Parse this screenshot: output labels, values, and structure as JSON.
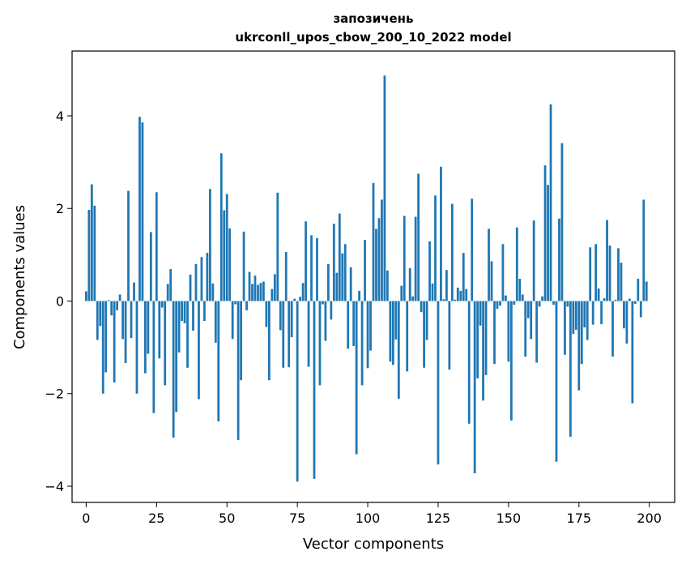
{
  "chart_data": {
    "type": "bar",
    "title": "запозичень",
    "subtitle": "ukrconll_upos_cbow_200_10_2022 model",
    "xlabel": "Vector components",
    "ylabel": "Components values",
    "xlim": [
      -5,
      209
    ],
    "ylim": [
      -4.35,
      5.4
    ],
    "xticks": [
      0,
      25,
      50,
      75,
      100,
      125,
      150,
      175,
      200
    ],
    "yticks": [
      -4,
      -2,
      0,
      2,
      4
    ],
    "xtick_labels": [
      "0",
      "25",
      "50",
      "75",
      "100",
      "125",
      "150",
      "175",
      "200"
    ],
    "ytick_labels": [
      "−4",
      "−2",
      "0",
      "2",
      "4"
    ],
    "grid": false,
    "bar_color": "#1f77b4",
    "values": [
      0.21,
      1.97,
      2.52,
      2.06,
      -0.84,
      -0.54,
      -2.0,
      -1.54,
      0.02,
      -0.31,
      -1.76,
      -0.2,
      0.14,
      -0.82,
      -1.34,
      2.38,
      -0.8,
      0.4,
      -2.0,
      3.98,
      3.86,
      -1.56,
      -1.14,
      1.49,
      -2.42,
      2.35,
      -1.24,
      -0.14,
      -1.82,
      0.37,
      0.69,
      -2.95,
      -2.4,
      -1.11,
      -0.43,
      -0.48,
      -1.44,
      0.57,
      -0.64,
      0.8,
      -2.12,
      0.95,
      -0.43,
      1.04,
      2.42,
      0.38,
      -0.9,
      -2.6,
      3.19,
      1.96,
      2.31,
      1.57,
      -0.82,
      -0.07,
      -3.0,
      -1.71,
      1.5,
      -0.2,
      0.63,
      0.37,
      0.55,
      0.35,
      0.39,
      0.42,
      -0.56,
      -1.71,
      0.26,
      0.58,
      2.34,
      -0.63,
      -1.44,
      1.06,
      -1.43,
      -0.78,
      0.05,
      -3.9,
      0.09,
      0.39,
      1.72,
      -1.42,
      1.42,
      -3.84,
      1.36,
      -1.82,
      -0.07,
      -0.86,
      0.8,
      -0.4,
      1.67,
      0.61,
      1.89,
      1.03,
      1.23,
      -1.03,
      0.73,
      -0.97,
      -3.31,
      0.22,
      -1.82,
      1.32,
      -1.45,
      -1.07,
      2.55,
      1.56,
      1.79,
      2.19,
      4.87,
      0.66,
      -1.31,
      -1.38,
      -0.83,
      -2.11,
      0.33,
      1.84,
      -1.52,
      0.71,
      0.1,
      1.82,
      2.75,
      -0.24,
      -1.44,
      -0.84,
      1.29,
      0.38,
      2.28,
      -3.53,
      2.9,
      0.04,
      0.67,
      -1.48,
      2.1,
      0.03,
      0.29,
      0.22,
      1.04,
      0.26,
      -2.65,
      2.21,
      -3.72,
      -1.67,
      -0.53,
      -2.15,
      -1.6,
      1.56,
      0.86,
      -1.36,
      -0.17,
      -0.1,
      1.23,
      0.12,
      -1.31,
      -2.58,
      -0.08,
      1.59,
      0.48,
      0.14,
      -1.2,
      -0.37,
      -0.82,
      1.74,
      -1.33,
      -0.12,
      0.1,
      2.93,
      2.51,
      4.25,
      -0.08,
      -3.47,
      1.78,
      3.41,
      -1.16,
      -0.12,
      -2.93,
      -0.71,
      -0.62,
      -1.93,
      -1.36,
      -0.57,
      -0.84,
      1.16,
      -0.51,
      1.23,
      0.27,
      -0.5,
      0.06,
      1.75,
      1.2,
      -1.2,
      0.03,
      1.14,
      0.83,
      -0.59,
      -0.92,
      0.05,
      -2.21,
      -0.06,
      0.48,
      -0.35,
      2.19,
      0.42
    ]
  }
}
